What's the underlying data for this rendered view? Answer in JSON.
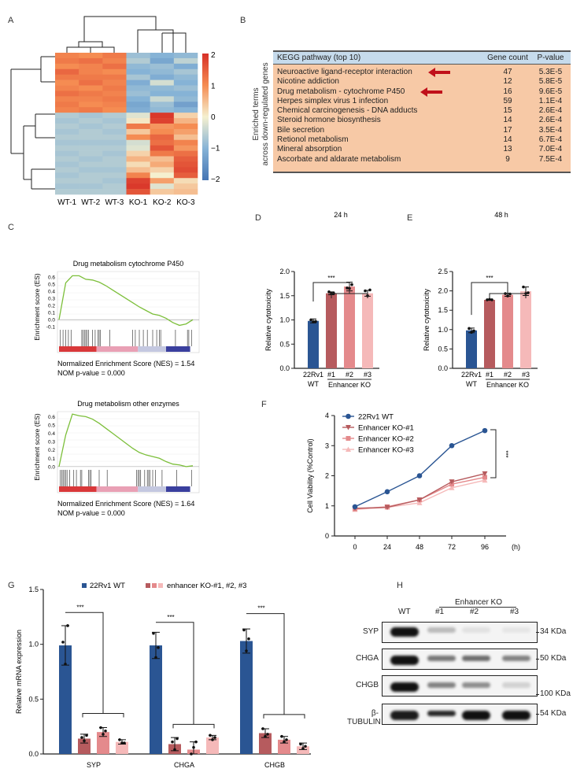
{
  "panels": {
    "A": "A",
    "B": "B",
    "C": "C",
    "D": "D",
    "E": "E",
    "F": "F",
    "G": "G",
    "H": "H"
  },
  "colors": {
    "wt": "#2a5593",
    "ko1": "#b65b5e",
    "ko2": "#e48a8c",
    "ko3": "#f5b9b9",
    "gsea_line": "#7cbf3a",
    "kegg_header": "#c6dbec",
    "kegg_body": "#f7c9a6",
    "arrow": "#c0101a"
  },
  "kegg": {
    "side_label_1": "Enriched terms",
    "side_label_2": "across down-regulated genes",
    "headers": {
      "pathway": "KEGG pathway (top 10)",
      "count": "Gene count",
      "p": "P-value"
    },
    "rows": [
      {
        "pathway": "Neuroactive ligand-receptor interaction",
        "count": "47",
        "p": "5.3E-5",
        "arrow": true
      },
      {
        "pathway": "Nicotine addiction",
        "count": "12",
        "p": "5.8E-5"
      },
      {
        "pathway": "Drug metabolism - cytochrome P450",
        "count": "16",
        "p": "9.6E-5",
        "arrow": true
      },
      {
        "pathway": "Herpes simplex virus 1 infection",
        "count": "59",
        "p": "1.1E-4"
      },
      {
        "pathway": "Chemical carcinogenesis - DNA adducts",
        "count": "15",
        "p": "2.6E-4"
      },
      {
        "pathway": "Steroid hormone biosynthesis",
        "count": "14",
        "p": "2.6E-4"
      },
      {
        "pathway": "Bile secretion",
        "count": "17",
        "p": "3.5E-4"
      },
      {
        "pathway": "Retionol metabolism",
        "count": "14",
        "p": "6.7E-4"
      },
      {
        "pathway": "Mineral absorption",
        "count": "13",
        "p": "7.0E-4"
      },
      {
        "pathway": "Ascorbate and aldarate metabolism",
        "count": "9",
        "p": "7.5E-4"
      }
    ]
  },
  "blot": {
    "group_label": "Enhancer KO",
    "lanes": [
      "WT",
      "#1",
      "#2",
      "#3"
    ],
    "rows": [
      {
        "protein": "SYP",
        "kda": "34 KDa",
        "intensity": [
          1.0,
          0.25,
          0.08,
          0.06
        ]
      },
      {
        "protein": "CHGA",
        "kda": "50 KDa",
        "intensity": [
          1.0,
          0.55,
          0.6,
          0.5
        ]
      },
      {
        "protein": "CHGB",
        "kda": "100 KDa",
        "intensity": [
          1.0,
          0.5,
          0.45,
          0.15
        ]
      },
      {
        "protein": "β-TUBULIN",
        "kda": "54 KDa",
        "intensity": [
          0.95,
          0.9,
          1.0,
          1.0
        ]
      }
    ]
  },
  "chart_data": [
    {
      "id": "A",
      "type": "heatmap",
      "columns": [
        "WT-1",
        "WT-2",
        "WT-3",
        "KO-1",
        "KO-2",
        "KO-3"
      ],
      "colorbar": {
        "ticks": [
          "2",
          "1",
          "0",
          "−1",
          "−2"
        ],
        "range": [
          -2,
          2
        ]
      },
      "values": [
        [
          1.1,
          1.0,
          1.2,
          -0.8,
          -1.0,
          -0.9
        ],
        [
          1.2,
          1.3,
          1.1,
          -0.6,
          -1.2,
          -0.5
        ],
        [
          1.0,
          1.1,
          1.3,
          -0.9,
          -0.8,
          -1.1
        ],
        [
          1.4,
          1.1,
          1.0,
          -1.0,
          -0.9,
          -0.7
        ],
        [
          1.2,
          1.2,
          1.2,
          -0.7,
          -1.1,
          -0.9
        ],
        [
          1.0,
          1.3,
          1.1,
          -1.1,
          -0.3,
          -1.0
        ],
        [
          1.1,
          1.0,
          1.2,
          -0.9,
          -0.9,
          -0.8
        ],
        [
          1.3,
          1.2,
          1.1,
          -0.8,
          -1.0,
          -1.0
        ],
        [
          1.1,
          1.1,
          1.2,
          -1.0,
          -0.4,
          -0.9
        ],
        [
          1.2,
          1.0,
          1.1,
          -1.2,
          -0.8,
          -1.3
        ],
        [
          1.1,
          1.2,
          1.0,
          -1.1,
          -0.9,
          -1.0
        ],
        [
          -0.6,
          -0.7,
          -0.6,
          -0.2,
          1.9,
          0.3
        ],
        [
          -0.7,
          -0.6,
          -0.7,
          0.1,
          1.8,
          0.6
        ],
        [
          -0.6,
          -0.7,
          -0.6,
          1.2,
          0.9,
          1.0
        ],
        [
          -0.7,
          -0.6,
          -0.7,
          0.4,
          1.0,
          0.8
        ],
        [
          -0.6,
          -0.6,
          -0.6,
          1.0,
          1.4,
          0.5
        ],
        [
          -0.7,
          -0.7,
          -0.7,
          -0.3,
          1.3,
          1.1
        ],
        [
          -0.6,
          -0.6,
          -0.6,
          -0.2,
          1.6,
          0.9
        ],
        [
          -0.7,
          -0.6,
          -0.7,
          0.3,
          1.2,
          1.3
        ],
        [
          -0.6,
          -0.7,
          -0.6,
          0.6,
          0.5,
          1.5
        ],
        [
          -0.7,
          -0.6,
          -0.6,
          0.2,
          0.7,
          1.6
        ],
        [
          -0.6,
          -0.7,
          -0.7,
          0.5,
          0.3,
          1.7
        ],
        [
          -0.7,
          -0.6,
          -0.6,
          1.1,
          0.0,
          1.5
        ],
        [
          -0.6,
          -0.6,
          -0.7,
          1.8,
          0.8,
          0.2
        ],
        [
          -0.7,
          -0.7,
          -0.6,
          1.9,
          -0.2,
          0.4
        ],
        [
          -0.6,
          -0.6,
          -0.6,
          1.6,
          0.4,
          0.5
        ]
      ]
    },
    {
      "id": "C1",
      "type": "line",
      "title": "Drug metabolism cytochrome P450",
      "ylabel": "Enrichment score (ES)",
      "yticks": [
        "0.6",
        "0.5",
        "0.4",
        "0.3",
        "0.2",
        "0.1",
        "0.0",
        "-0.1"
      ],
      "ylim": [
        -0.12,
        0.68
      ],
      "es": [
        0.0,
        0.52,
        0.62,
        0.62,
        0.57,
        0.56,
        0.53,
        0.48,
        0.42,
        0.36,
        0.3,
        0.24,
        0.18,
        0.13,
        0.08,
        0.06,
        0.02,
        -0.04,
        -0.08,
        -0.06,
        0.0
      ],
      "hits": [
        0.01,
        0.03,
        0.05,
        0.07,
        0.09,
        0.17,
        0.18,
        0.19,
        0.2,
        0.21,
        0.22,
        0.25,
        0.27,
        0.29,
        0.3,
        0.31,
        0.38,
        0.55,
        0.57,
        0.6,
        0.63,
        0.66,
        0.7,
        0.73,
        0.75,
        0.76,
        0.87,
        0.96,
        0.97,
        0.99
      ],
      "nes": "Normalized Enrichment Score (NES) = 1.54",
      "pval": "NOM p-value = 0.000"
    },
    {
      "id": "C2",
      "type": "line",
      "title": "Drug metabolism other enzymes",
      "ylabel": "Enrichment score (ES)",
      "yticks": [
        "0.6",
        "0.5",
        "0.4",
        "0.3",
        "0.2",
        "0.1",
        "0.0"
      ],
      "ylim": [
        -0.02,
        0.66
      ],
      "es": [
        0.0,
        0.38,
        0.63,
        0.61,
        0.6,
        0.57,
        0.52,
        0.46,
        0.4,
        0.34,
        0.28,
        0.22,
        0.17,
        0.14,
        0.12,
        0.1,
        0.06,
        0.03,
        0.02,
        0.0,
        0.01
      ],
      "hits": [
        0.01,
        0.02,
        0.03,
        0.04,
        0.05,
        0.06,
        0.08,
        0.11,
        0.13,
        0.16,
        0.17,
        0.22,
        0.23,
        0.24,
        0.3,
        0.36,
        0.58,
        0.59,
        0.6,
        0.61,
        0.64,
        0.66,
        0.67,
        0.68,
        0.7,
        0.72,
        0.77,
        0.88,
        0.99
      ],
      "nes": "Normalized Enrichment Score (NES) = 1.64",
      "pval": "NOM p-value = 0.000"
    },
    {
      "id": "D",
      "type": "bar",
      "title": "24 h",
      "ylabel": "Relative cytotoxicity",
      "categories": [
        "22Rv1",
        "#1",
        "#2",
        "#3"
      ],
      "sublabel_wt": "WT",
      "group_label": "Enhancer KO",
      "yticks": [
        "0.0",
        "0.5",
        "1.0",
        "1.5",
        "2.0"
      ],
      "ylim": [
        0,
        2.0
      ],
      "values": [
        0.98,
        1.55,
        1.69,
        1.55
      ],
      "errors": [
        0.04,
        0.03,
        0.09,
        0.06
      ],
      "points": [
        [
          1.0,
          0.96,
          0.97
        ],
        [
          1.58,
          1.55,
          1.55
        ],
        [
          1.66,
          1.65,
          1.73
        ],
        [
          1.6,
          1.5,
          1.62
        ]
      ],
      "significance": "***"
    },
    {
      "id": "E",
      "type": "bar",
      "title": "48 h",
      "ylabel": "Relative cytotoxicity",
      "categories": [
        "22Rv1",
        "#1",
        "#2",
        "#3"
      ],
      "sublabel_wt": "WT",
      "group_label": "Enhancer KO",
      "yticks": [
        "0.0",
        "0.5",
        "1.0",
        "1.5",
        "2.0",
        "2.5"
      ],
      "ylim": [
        0,
        2.5
      ],
      "values": [
        0.98,
        1.77,
        1.9,
        1.99
      ],
      "errors": [
        0.06,
        0.01,
        0.04,
        0.11
      ],
      "points": [
        [
          1.03,
          0.93,
          0.97
        ],
        [
          1.77,
          1.78,
          1.77
        ],
        [
          1.93,
          1.87,
          1.92
        ],
        [
          2.1,
          1.93,
          1.95
        ]
      ],
      "significance": "***"
    },
    {
      "id": "F",
      "type": "line",
      "ylabel": "Cell Viability (%Control)",
      "xunit": "(h)",
      "x": [
        0,
        24,
        48,
        72,
        96
      ],
      "yticks": [
        "0",
        "1",
        "2",
        "3",
        "4"
      ],
      "ylim": [
        0,
        4
      ],
      "series": [
        {
          "name": "22Rv1 WT",
          "marker": "circle",
          "values": [
            0.97,
            1.47,
            2.0,
            3.0,
            3.5
          ]
        },
        {
          "name": "Enhancer KO-#1",
          "marker": "triangle-down",
          "values": [
            0.92,
            0.95,
            1.2,
            1.8,
            2.07
          ]
        },
        {
          "name": "Enhancer KO-#2",
          "marker": "square",
          "values": [
            0.9,
            0.97,
            1.2,
            1.72,
            1.95
          ]
        },
        {
          "name": "Enhancer KO-#3",
          "marker": "triangle-up",
          "values": [
            0.88,
            0.95,
            1.1,
            1.6,
            1.85
          ]
        }
      ],
      "significance": "***"
    },
    {
      "id": "G",
      "type": "bar",
      "ylabel": "Relative mRNA expression",
      "legend": {
        "wt": "22Rv1 WT",
        "ko": "enhancer KO-#1, #2, #3"
      },
      "categories": [
        "SYP",
        "CHGA",
        "CHGB"
      ],
      "yticks": [
        "0.0",
        "0.5",
        "1.0",
        "1.5"
      ],
      "ylim": [
        0,
        1.5
      ],
      "series": [
        {
          "name": "22Rv1 WT",
          "values": [
            0.99,
            0.99,
            1.03
          ],
          "errors": [
            0.18,
            0.12,
            0.11
          ],
          "points": [
            [
              1.02,
              0.82,
              1.17
            ],
            [
              1.1,
              0.88,
              0.97
            ],
            [
              1.13,
              0.94,
              1.05
            ]
          ]
        },
        {
          "name": "enhancer KO-#1",
          "values": [
            0.14,
            0.09,
            0.19
          ],
          "errors": [
            0.04,
            0.06,
            0.04
          ],
          "points": [
            [
              0.15,
              0.12,
              0.17
            ],
            [
              0.11,
              0.04,
              0.14
            ],
            [
              0.23,
              0.16,
              0.18
            ]
          ]
        },
        {
          "name": "enhancer KO-#2",
          "values": [
            0.2,
            0.04,
            0.13
          ],
          "errors": [
            0.04,
            0.07,
            0.03
          ],
          "points": [
            [
              0.24,
              0.18,
              0.21
            ],
            [
              0.0,
              0.06,
              0.11
            ],
            [
              0.16,
              0.11,
              0.13
            ]
          ]
        },
        {
          "name": "enhancer KO-#3",
          "values": [
            0.11,
            0.15,
            0.07
          ],
          "errors": [
            0.02,
            0.02,
            0.03
          ],
          "points": [
            [
              0.13,
              0.1,
              0.1
            ],
            [
              0.17,
              0.13,
              0.15
            ],
            [
              0.09,
              0.05,
              0.07
            ]
          ]
        }
      ],
      "significance": "***"
    }
  ]
}
